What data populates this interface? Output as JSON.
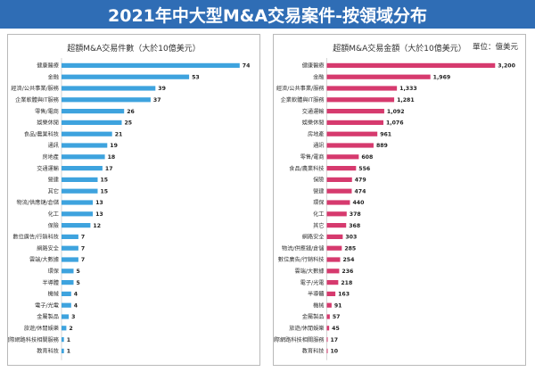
{
  "page": {
    "title": "2021年中大型M&A交易案件-按領域分布"
  },
  "colors": {
    "banner": "#2f6db5",
    "left_bar": "#3ea3de",
    "right_bar": "#d63a6e"
  },
  "chart_data": [
    {
      "type": "bar",
      "orientation": "horizontal",
      "title": "超額M&A交易件數（大於10億美元）",
      "xlim": [
        0,
        80
      ],
      "xticks": [
        "0",
        "10",
        "20",
        "30",
        "40",
        "50",
        "60",
        "70",
        "80"
      ],
      "categories": [
        "健康醫療",
        "金融",
        "經濟/公共事業/服務",
        "企業軟體與IT服務",
        "零售/電商",
        "娛樂休閒",
        "食品/農業科技",
        "通訊",
        "房地產",
        "交通運輸",
        "營建",
        "其它",
        "物流/供應鏈/倉儲",
        "化工",
        "保險",
        "數位廣告/行銷科技",
        "網路安全",
        "雲端/大數據",
        "環保",
        "半導體",
        "機械",
        "電子/光電",
        "金屬製品",
        "旅遊/休閒娛樂",
        "網際網路科技相關服務",
        "教育科技"
      ],
      "values": [
        74,
        53,
        39,
        37,
        26,
        25,
        21,
        19,
        18,
        17,
        15,
        15,
        13,
        13,
        12,
        7,
        7,
        7,
        5,
        5,
        4,
        4,
        3,
        2,
        1,
        1
      ],
      "value_labels": [
        "74",
        "53",
        "39",
        "37",
        "26",
        "25",
        "21",
        "19",
        "18",
        "17",
        "15",
        "15",
        "13",
        "13",
        "12",
        "7",
        "7",
        "7",
        "5",
        "5",
        "4",
        "4",
        "3",
        "2",
        "1",
        "1"
      ]
    },
    {
      "type": "bar",
      "orientation": "horizontal",
      "title": "超額M&A交易金額（大於10億美元）",
      "unit_label": "單位：億美元",
      "xlim": [
        -500,
        3500
      ],
      "xticks": [
        "-500",
        "0",
        "500",
        "1,000",
        "1,500",
        "2,000",
        "2,500",
        "3,000",
        "3,500"
      ],
      "categories": [
        "健康醫療",
        "金融",
        "經濟/公共事業/服務",
        "企業軟體與IT服務",
        "交通運輸",
        "娛樂休閒",
        "房地產",
        "通訊",
        "零售/電商",
        "食品/農業科技",
        "保險",
        "營建",
        "環保",
        "化工",
        "其它",
        "網路安全",
        "物流/供應鏈/倉儲",
        "數位廣告/行銷科技",
        "雲端/大數據",
        "電子/光電",
        "半導體",
        "機械",
        "金屬製品",
        "旅遊/休閒娛樂",
        "網際網路科技相關服務",
        "教育科技"
      ],
      "values": [
        3200,
        1969,
        1333,
        1281,
        1092,
        1076,
        961,
        889,
        608,
        556,
        479,
        474,
        440,
        378,
        368,
        303,
        285,
        254,
        236,
        218,
        163,
        91,
        57,
        45,
        17,
        10
      ],
      "value_labels": [
        "3,200",
        "1,969",
        "1,333",
        "1,281",
        "1,092",
        "1,076",
        "961",
        "889",
        "608",
        "556",
        "479",
        "474",
        "440",
        "378",
        "368",
        "303",
        "285",
        "254",
        "236",
        "218",
        "163",
        "91",
        "57",
        "45",
        "17",
        "10"
      ]
    }
  ]
}
